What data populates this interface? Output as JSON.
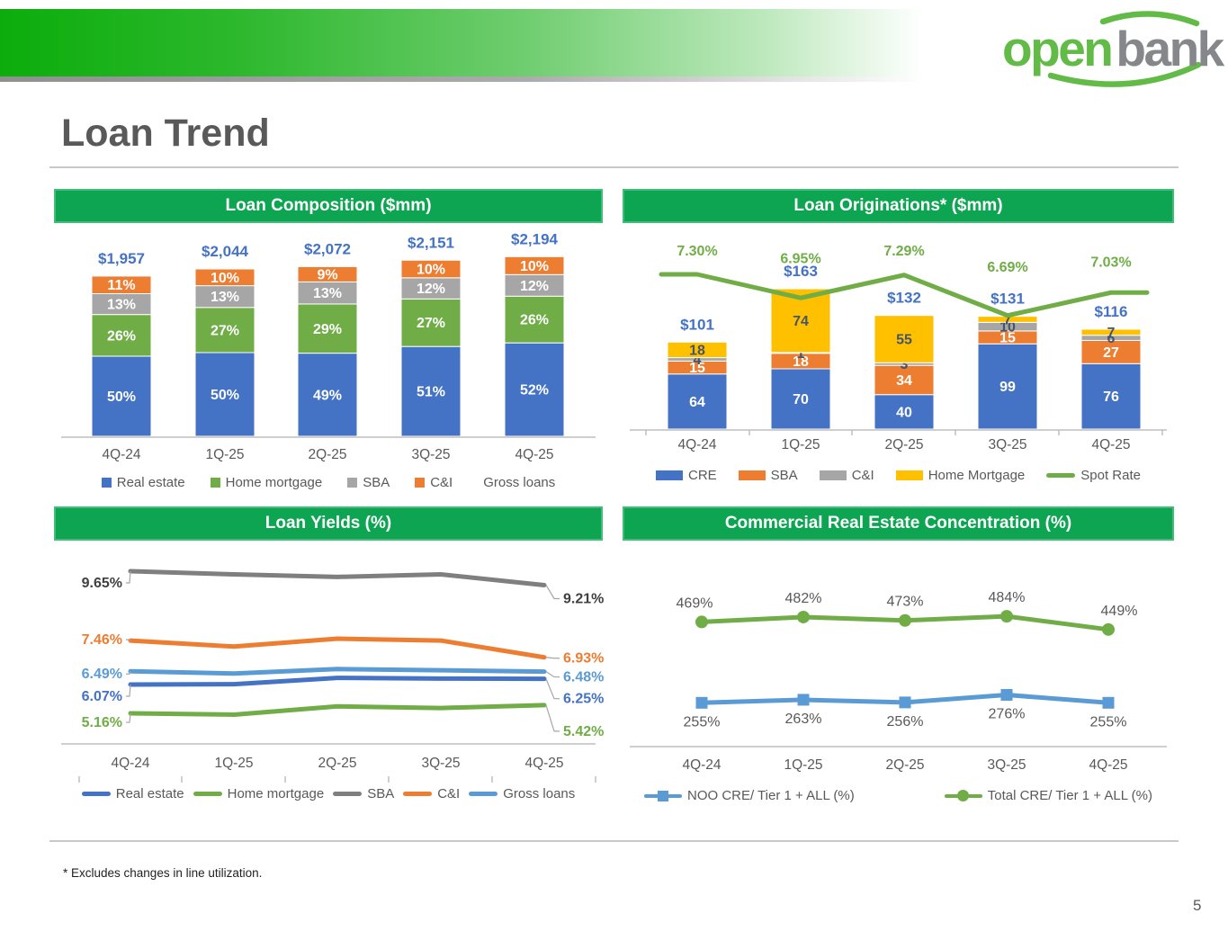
{
  "slide": {
    "title": "Loan Trend",
    "footnote": "* Excludes changes in line utilization.",
    "page_number": "5"
  },
  "logo": {
    "open": "open",
    "bank": "bank",
    "green": "#62BB46",
    "gray": "#85878A"
  },
  "accent": {
    "header_green": "#0EA552",
    "label_blue": "#4472C4",
    "spot_green": "#70AD47",
    "text_gray": "#595959"
  },
  "chart_data": [
    {
      "id": "composition",
      "type": "bar",
      "stacked": true,
      "title": "Loan Composition ($mm)",
      "categories": [
        "4Q-24",
        "1Q-25",
        "2Q-25",
        "3Q-25",
        "4Q-25"
      ],
      "totals_labels": [
        "$1,957",
        "$2,044",
        "$2,072",
        "$2,151",
        "$2,194"
      ],
      "totals_values": [
        1957,
        2044,
        2072,
        2151,
        2194
      ],
      "series": [
        {
          "name": "Real estate",
          "color": "#4472C4",
          "text": "#FFFFFF",
          "values": [
            50,
            50,
            49,
            51,
            52
          ],
          "suffix": "%"
        },
        {
          "name": "Home mortgage",
          "color": "#70AD47",
          "text": "#FFFFFF",
          "values": [
            26,
            27,
            29,
            27,
            26
          ],
          "suffix": "%"
        },
        {
          "name": "SBA",
          "color": "#A6A6A6",
          "text": "#FFFFFF",
          "values": [
            13,
            13,
            13,
            12,
            12
          ],
          "suffix": "%"
        },
        {
          "name": "C&I",
          "color": "#ED7D31",
          "text": "#FFFFFF",
          "values": [
            11,
            10,
            9,
            10,
            10
          ],
          "suffix": "%"
        }
      ],
      "legend": [
        {
          "label": "Real estate",
          "color": "#4472C4",
          "marker": "square"
        },
        {
          "label": "Home mortgage",
          "color": "#70AD47",
          "marker": "square"
        },
        {
          "label": "SBA",
          "color": "#A6A6A6",
          "marker": "square"
        },
        {
          "label": "C&I",
          "color": "#ED7D31",
          "marker": "square"
        },
        {
          "label": "Gross loans",
          "color": "",
          "marker": "none"
        }
      ]
    },
    {
      "id": "originations",
      "type": "bar-line",
      "stacked": true,
      "title": "Loan Originations* ($mm)",
      "categories": [
        "4Q-24",
        "1Q-25",
        "2Q-25",
        "3Q-25",
        "4Q-25"
      ],
      "totals_labels": [
        "$101",
        "$163",
        "$132",
        "$131",
        "$116"
      ],
      "totals_values": [
        101,
        163,
        132,
        131,
        116
      ],
      "series": [
        {
          "name": "CRE",
          "color": "#4472C4",
          "text": "#FFFFFF",
          "values": [
            64,
            70,
            40,
            99,
            76
          ]
        },
        {
          "name": "SBA",
          "color": "#ED7D31",
          "text": "#FFFFFF",
          "values": [
            15,
            18,
            34,
            15,
            27
          ]
        },
        {
          "name": "C&I",
          "color": "#A6A6A6",
          "text": "#44546A",
          "values": [
            4,
            1,
            3,
            10,
            6
          ]
        },
        {
          "name": "Home Mortgage",
          "color": "#FFC000",
          "text": "#44546A",
          "values": [
            18,
            74,
            55,
            7,
            7
          ]
        }
      ],
      "line": {
        "name": "Spot Rate",
        "color": "#70AD47",
        "values": [
          7.3,
          6.95,
          7.29,
          6.69,
          7.03
        ],
        "labels": [
          "7.30%",
          "6.95%",
          "7.29%",
          "6.69%",
          "7.03%"
        ],
        "label_dy": [
          -21,
          -39,
          -22,
          -49,
          -29
        ]
      },
      "legend": [
        {
          "label": "CRE",
          "color": "#4472C4",
          "marker": "rect"
        },
        {
          "label": "SBA",
          "color": "#ED7D31",
          "marker": "rect"
        },
        {
          "label": "C&I",
          "color": "#A6A6A6",
          "marker": "rect"
        },
        {
          "label": "Home Mortgage",
          "color": "#FFC000",
          "marker": "rect"
        },
        {
          "label": "Spot Rate",
          "color": "#70AD47",
          "marker": "hline"
        }
      ]
    },
    {
      "id": "yields",
      "type": "line",
      "title": "Loan Yields (%)",
      "categories": [
        "4Q-24",
        "1Q-25",
        "2Q-25",
        "3Q-25",
        "4Q-25"
      ],
      "ylim": [
        4.2,
        10.2
      ],
      "series": [
        {
          "name": "SBA",
          "color": "#7F7F7F",
          "label_color": "#404040",
          "values": [
            9.65,
            9.55,
            9.47,
            9.55,
            9.21
          ],
          "first_label": "9.65%",
          "last_label": "9.21%",
          "left_dy": 18,
          "right_dy": 20
        },
        {
          "name": "C&I",
          "color": "#ED7D31",
          "label_color": "#ED7D31",
          "values": [
            7.46,
            7.27,
            7.52,
            7.46,
            6.93
          ],
          "first_label": "7.46%",
          "last_label": "6.93%",
          "left_dy": 4,
          "right_dy": 6
        },
        {
          "name": "Gross loans",
          "color": "#5B9BD5",
          "label_color": "#5B9BD5",
          "values": [
            6.49,
            6.42,
            6.56,
            6.52,
            6.48
          ],
          "first_label": "6.49%",
          "last_label": "6.48%",
          "left_dy": 8,
          "right_dy": 11
        },
        {
          "name": "Real estate",
          "color": "#4472C4",
          "label_color": "#4472C4",
          "values": [
            6.07,
            6.08,
            6.28,
            6.26,
            6.25
          ],
          "first_label": "6.07%",
          "last_label": "6.25%",
          "left_dy": 18,
          "right_dy": 27
        },
        {
          "name": "Home mortgage",
          "color": "#70AD47",
          "label_color": "#70AD47",
          "values": [
            5.16,
            5.12,
            5.38,
            5.33,
            5.42
          ],
          "first_label": "5.16%",
          "last_label": "5.42%",
          "left_dy": 15,
          "right_dy": 34
        }
      ],
      "legend": [
        {
          "label": "Real estate",
          "color": "#4472C4",
          "marker": "hline"
        },
        {
          "label": "Home mortgage",
          "color": "#70AD47",
          "marker": "hline"
        },
        {
          "label": "SBA",
          "color": "#7F7F7F",
          "marker": "hline"
        },
        {
          "label": "C&I",
          "color": "#ED7D31",
          "marker": "hline"
        },
        {
          "label": "Gross loans",
          "color": "#5B9BD5",
          "marker": "hline"
        }
      ]
    },
    {
      "id": "cre_concentration",
      "type": "line",
      "title": "Commercial Real Estate Concentration (%)",
      "categories": [
        "4Q-24",
        "1Q-25",
        "2Q-25",
        "3Q-25",
        "4Q-25"
      ],
      "ylim": [
        200,
        520
      ],
      "series": [
        {
          "name": "NOO CRE/ Tier 1 + ALL (%)",
          "color": "#5B9BD5",
          "marker": "square",
          "values": [
            255,
            263,
            256,
            276,
            255
          ],
          "labels": [
            "255%",
            "263%",
            "256%",
            "276%",
            "255%"
          ],
          "label_pos": "below",
          "label_dx": [
            0,
            0,
            0,
            0,
            0
          ]
        },
        {
          "name": "Total CRE/ Tier 1 + ALL (%)",
          "color": "#70AD47",
          "marker": "circle",
          "values": [
            469,
            482,
            473,
            484,
            449
          ],
          "labels": [
            "469%",
            "482%",
            "473%",
            "484%",
            "449%"
          ],
          "label_pos": "above",
          "label_dx": [
            -8,
            0,
            0,
            0,
            12
          ]
        }
      ],
      "legend": [
        {
          "label": "NOO CRE/ Tier 1 + ALL (%)",
          "color": "#5B9BD5",
          "marker": "line-square"
        },
        {
          "label": "Total CRE/ Tier 1 + ALL (%)",
          "color": "#70AD47",
          "marker": "line-circle"
        }
      ]
    }
  ]
}
